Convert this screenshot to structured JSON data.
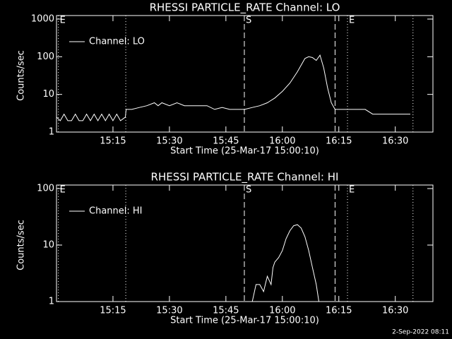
{
  "chart_data": [
    {
      "type": "line",
      "title": "RHESSI PARTICLE_RATE Channel: LO",
      "xlabel": "Start Time (25-Mar-17 15:00:10)",
      "ylabel": "Counts/sec",
      "xlim": [
        0,
        100
      ],
      "xticks": [
        {
          "value": 15,
          "label": "15:15"
        },
        {
          "value": 30,
          "label": "15:30"
        },
        {
          "value": 45,
          "label": "15:45"
        },
        {
          "value": 60,
          "label": "16:00"
        },
        {
          "value": 75,
          "label": "16:15"
        },
        {
          "value": 90,
          "label": "16:30"
        }
      ],
      "ylim": [
        1,
        1000
      ],
      "yticks": [
        1,
        10,
        100,
        1000
      ],
      "log_y": true,
      "legend": "upper left",
      "vlines": [
        {
          "x": 0.5,
          "style": "dotted",
          "label": "E"
        },
        {
          "x": 18.4,
          "style": "dotted"
        },
        {
          "x": 49.9,
          "style": "dashed",
          "label": "S"
        },
        {
          "x": 74,
          "style": "dashed"
        },
        {
          "x": 77.3,
          "style": "dotted",
          "label": "E"
        },
        {
          "x": 94.7,
          "style": "dotted"
        }
      ],
      "series": [
        {
          "name": "Channel: LO",
          "color": "#ffffff",
          "x": [
            0,
            1,
            2,
            3,
            4,
            5,
            6,
            7,
            8,
            9,
            10,
            11,
            12,
            13,
            14,
            15,
            16,
            17,
            18.3,
            18.5,
            20,
            22,
            24,
            26,
            27,
            28,
            30,
            32,
            34,
            36,
            38,
            40,
            42,
            44,
            46,
            48,
            50,
            52,
            54,
            56,
            58,
            60,
            62,
            64,
            65,
            66,
            67,
            68,
            69,
            70,
            71,
            72,
            73,
            74,
            76,
            78,
            80,
            82,
            84,
            86,
            88,
            90,
            92,
            94
          ],
          "values": [
            2.5,
            2,
            3,
            2,
            2,
            3,
            2,
            2,
            3,
            2,
            3,
            2,
            3,
            2,
            3,
            2,
            3,
            2,
            2.5,
            4,
            4,
            4.5,
            5,
            6,
            5,
            6,
            5,
            6,
            5,
            5,
            5,
            5,
            4,
            4.5,
            4,
            4,
            4,
            4.5,
            5,
            6,
            8,
            12,
            20,
            40,
            60,
            90,
            100,
            95,
            80,
            110,
            50,
            15,
            6,
            4,
            4,
            4,
            4,
            4,
            3,
            3,
            3,
            3,
            3,
            3
          ]
        }
      ]
    },
    {
      "type": "line",
      "title": "RHESSI PARTICLE_RATE Channel: HI",
      "xlabel": "Start Time (25-Mar-17 15:00:10)",
      "ylabel": "Counts/sec",
      "xlim": [
        0,
        100
      ],
      "xticks": [
        {
          "value": 15,
          "label": "15:15"
        },
        {
          "value": 30,
          "label": "15:30"
        },
        {
          "value": 45,
          "label": "15:45"
        },
        {
          "value": 60,
          "label": "16:00"
        },
        {
          "value": 75,
          "label": "16:15"
        },
        {
          "value": 90,
          "label": "16:30"
        }
      ],
      "ylim": [
        1,
        100
      ],
      "yticks": [
        1,
        10,
        100
      ],
      "log_y": true,
      "legend": "upper left",
      "vlines": [
        {
          "x": 0.5,
          "style": "dotted",
          "label": "E"
        },
        {
          "x": 18.4,
          "style": "dotted"
        },
        {
          "x": 49.9,
          "style": "dashed",
          "label": "S"
        },
        {
          "x": 74,
          "style": "dashed"
        },
        {
          "x": 77.3,
          "style": "dotted",
          "label": "E"
        },
        {
          "x": 94.7,
          "style": "dotted"
        }
      ],
      "series": [
        {
          "name": "Channel: HI",
          "color": "#ffffff",
          "x": [
            52,
            53,
            54,
            55,
            56,
            57,
            57.5,
            58,
            59,
            60,
            61,
            62,
            63,
            64,
            65,
            66,
            67,
            68,
            69,
            69.7
          ],
          "values": [
            1,
            2,
            2,
            1.5,
            2.8,
            2,
            4,
            5,
            6,
            8,
            13,
            18,
            22,
            23,
            20,
            14,
            8,
            4,
            2,
            1
          ]
        }
      ]
    }
  ],
  "footer": "2-Sep-2022 08:11"
}
